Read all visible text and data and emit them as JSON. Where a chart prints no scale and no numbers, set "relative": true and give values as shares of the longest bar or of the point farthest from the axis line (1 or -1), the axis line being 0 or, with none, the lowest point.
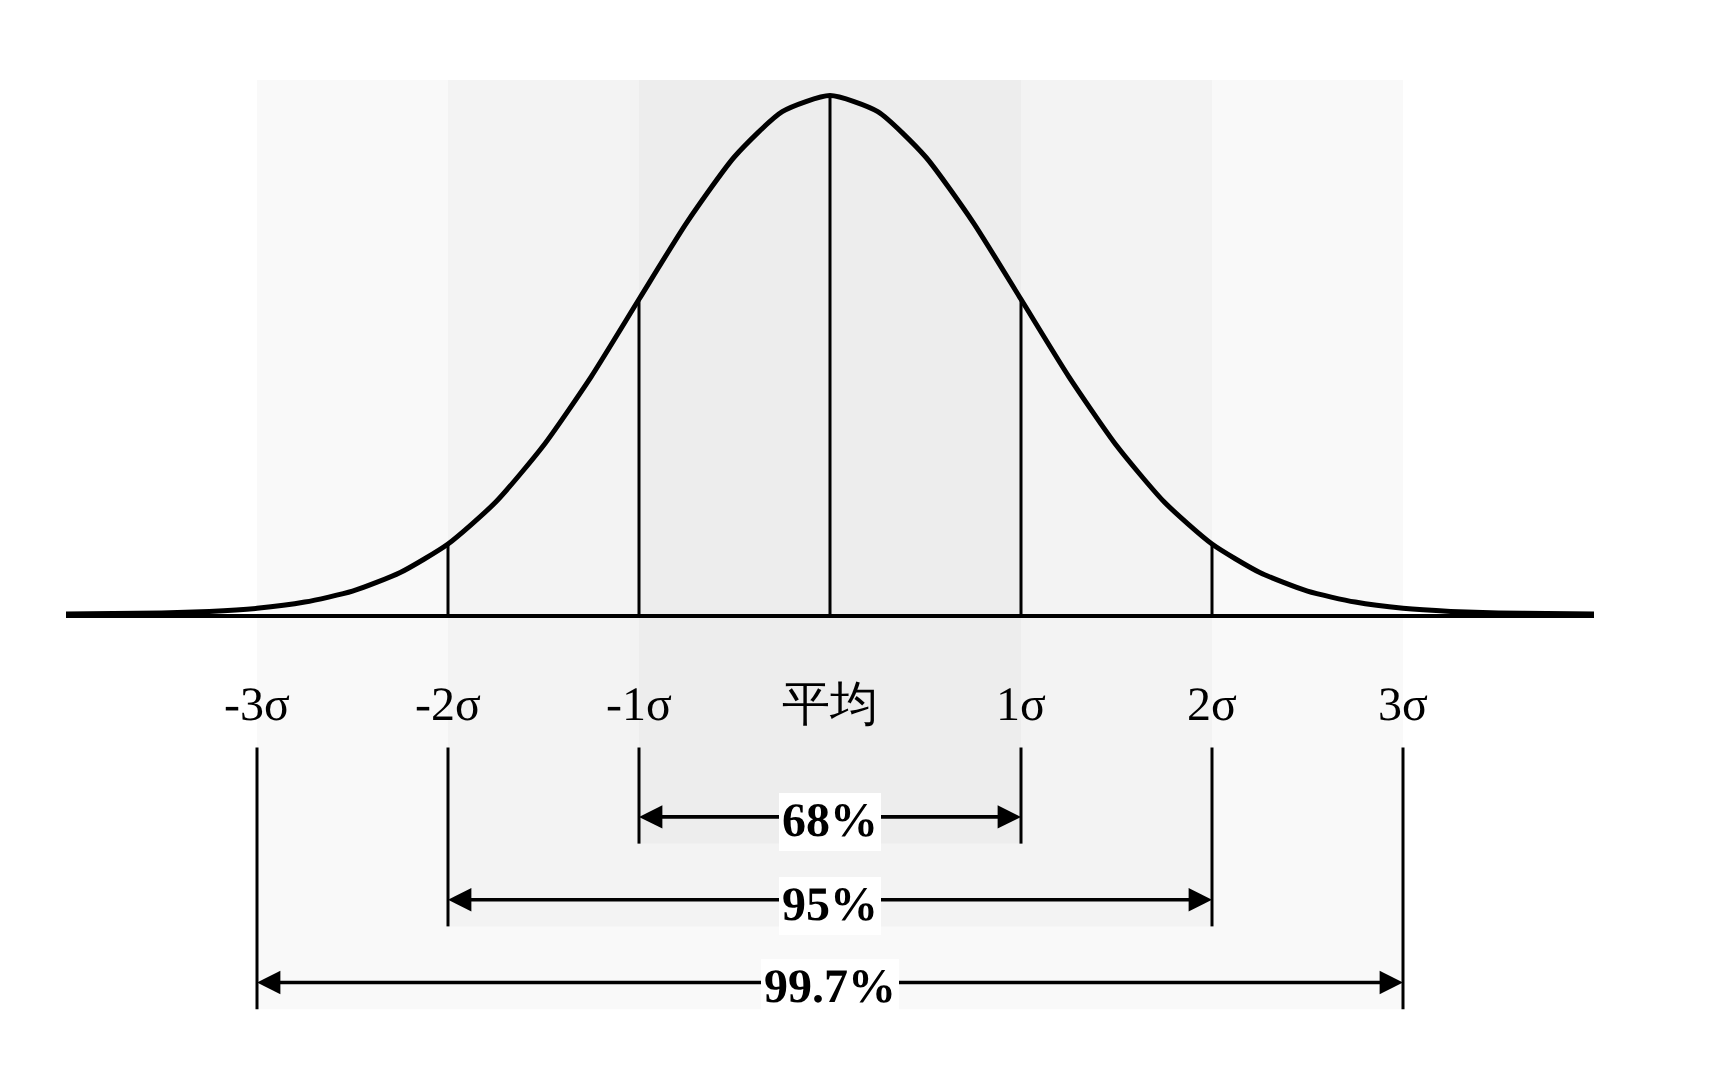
{
  "chart_data": {
    "type": "line",
    "relative": true,
    "grid": false,
    "marker": "none",
    "line_style": "solid",
    "x": [
      -4,
      -3.75,
      -3.5,
      -3.25,
      -3,
      -2.75,
      -2.5,
      -2.25,
      -2,
      -1.75,
      -1.5,
      -1.25,
      -1,
      -0.75,
      -0.5,
      -0.25,
      0,
      0.25,
      0.5,
      0.75,
      1,
      1.25,
      1.5,
      1.75,
      2,
      2.25,
      2.5,
      2.75,
      3,
      3.25,
      3.5,
      3.75,
      4
    ],
    "series": [
      {
        "color": "#000000",
        "values": [
          0,
          0.001,
          0.002,
          0.005,
          0.011,
          0.023,
          0.044,
          0.08,
          0.135,
          0.216,
          0.325,
          0.458,
          0.607,
          0.755,
          0.882,
          0.969,
          1,
          0.969,
          0.882,
          0.755,
          0.607,
          0.458,
          0.325,
          0.216,
          0.135,
          0.08,
          0.044,
          0.023,
          0.011,
          0.005,
          0.002,
          0.001,
          0
        ]
      }
    ],
    "xlim": [
      -4,
      4
    ],
    "xticks": [
      {
        "value": -3,
        "label": "-3σ"
      },
      {
        "value": -2,
        "label": "-2σ"
      },
      {
        "value": -1,
        "label": "-1σ"
      },
      {
        "value": 0,
        "label": "平均"
      },
      {
        "value": 1,
        "label": "1σ"
      },
      {
        "value": 2,
        "label": "2σ"
      },
      {
        "value": 3,
        "label": "3σ"
      }
    ],
    "ref_lines": [
      {
        "axis": "x",
        "value": -2,
        "color": "#000000"
      },
      {
        "axis": "x",
        "value": -1,
        "color": "#000000"
      },
      {
        "axis": "x",
        "value": 0,
        "color": "#000000"
      },
      {
        "axis": "x",
        "value": 1,
        "color": "#000000"
      },
      {
        "axis": "x",
        "value": 2,
        "color": "#000000"
      }
    ],
    "bands": [
      {
        "axis": "x",
        "from": -1,
        "to": 1,
        "label": "68%"
      },
      {
        "axis": "x",
        "from": -2,
        "to": 2,
        "label": "95%"
      },
      {
        "axis": "x",
        "from": -3,
        "to": 3,
        "label": "99.7%"
      }
    ]
  }
}
